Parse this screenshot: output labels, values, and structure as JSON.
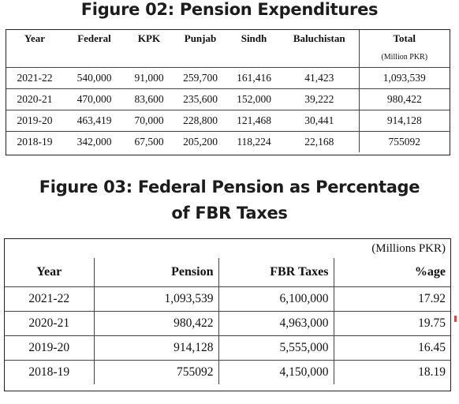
{
  "figure2": {
    "title": "Figure 02: Pension Expenditures",
    "headers": [
      "Year",
      "Federal",
      "KPK",
      "Punjab",
      "Sindh",
      "Baluchistan",
      "Total"
    ],
    "unit": "(Million PKR)",
    "rows": [
      [
        "2021-22",
        "540,000",
        "91,000",
        "259,700",
        "161,416",
        "41,423",
        "1,093,539"
      ],
      [
        "2020-21",
        "470,000",
        "83,600",
        "235,600",
        "152,000",
        "39,222",
        "980,422"
      ],
      [
        "2019-20",
        "463,419",
        "70,000",
        "228,800",
        "121,468",
        "30,441",
        "914,128"
      ],
      [
        "2018-19",
        "342,000",
        "67,500",
        "205,200",
        "118,224",
        "22,168",
        "755092"
      ]
    ]
  },
  "figure3": {
    "title_line1": "Figure 03: Federal Pension as Percentage",
    "title_line2": "of FBR Taxes",
    "unit": "(Millions PKR)",
    "headers": [
      "Year",
      "Pension",
      "FBR Taxes",
      "%age"
    ],
    "rows": [
      [
        "2021-22",
        "1,093,539",
        "6,100,000",
        "17.92"
      ],
      [
        "2020-21",
        "980,422",
        "4,963,000",
        "19.75"
      ],
      [
        "2019-20",
        "914,128",
        "5,555,000",
        "16.45"
      ],
      [
        "2018-19",
        "755092",
        "4,150,000",
        "18.19"
      ]
    ]
  }
}
